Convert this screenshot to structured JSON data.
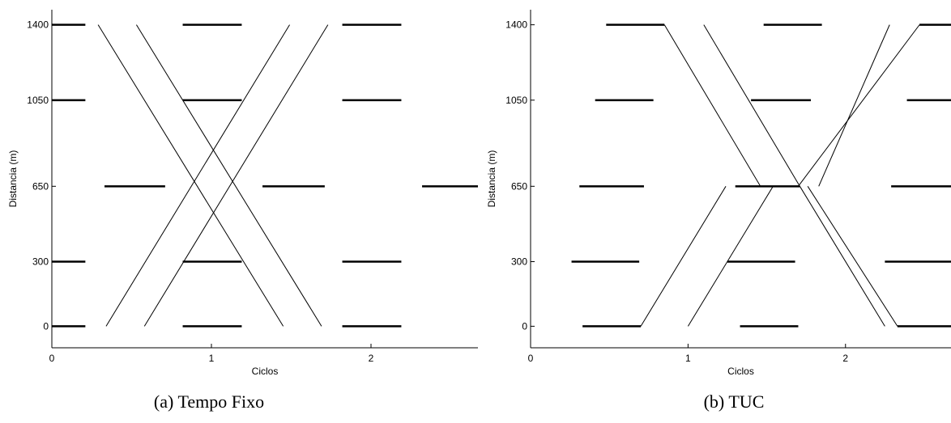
{
  "chart_data": [
    {
      "type": "line",
      "caption": "(a) Tempo Fixo",
      "xlabel": "Ciclos",
      "ylabel": "Distancia (m)",
      "xlim": [
        0,
        2.67
      ],
      "ylim": [
        -100,
        1470
      ],
      "xticks": [
        0,
        1,
        2
      ],
      "yticks": [
        0,
        300,
        650,
        1050,
        1400
      ],
      "green_bands": [
        {
          "y": 0,
          "segments": [
            [
              0,
              0.21
            ],
            [
              0.82,
              1.19
            ],
            [
              1.82,
              2.19
            ]
          ]
        },
        {
          "y": 300,
          "segments": [
            [
              0,
              0.21
            ],
            [
              0.82,
              1.19
            ],
            [
              1.82,
              2.19
            ]
          ]
        },
        {
          "y": 650,
          "segments": [
            [
              0.33,
              0.71
            ],
            [
              1.32,
              1.71
            ],
            [
              2.32,
              2.67
            ]
          ]
        },
        {
          "y": 1050,
          "segments": [
            [
              0,
              0.21
            ],
            [
              0.82,
              1.19
            ],
            [
              1.82,
              2.19
            ]
          ]
        },
        {
          "y": 1400,
          "segments": [
            [
              0,
              0.21
            ],
            [
              0.82,
              1.19
            ],
            [
              1.82,
              2.19
            ]
          ]
        }
      ],
      "trajectories": [
        [
          [
            0.34,
            0
          ],
          [
            1.49,
            1400
          ]
        ],
        [
          [
            0.58,
            0
          ],
          [
            1.73,
            1400
          ]
        ],
        [
          [
            0.29,
            1400
          ],
          [
            1.45,
            0
          ]
        ],
        [
          [
            0.53,
            1400
          ],
          [
            1.69,
            0
          ]
        ]
      ]
    },
    {
      "type": "line",
      "caption": "(b) TUC",
      "xlabel": "Ciclos",
      "ylabel": "Distancia (m)",
      "xlim": [
        0,
        2.67
      ],
      "ylim": [
        -100,
        1470
      ],
      "xticks": [
        0,
        1,
        2
      ],
      "yticks": [
        0,
        300,
        650,
        1050,
        1400
      ],
      "green_bands": [
        {
          "y": 0,
          "segments": [
            [
              0.33,
              0.7
            ],
            [
              1.33,
              1.7
            ],
            [
              2.33,
              2.67
            ]
          ]
        },
        {
          "y": 300,
          "segments": [
            [
              0.26,
              0.69
            ],
            [
              1.25,
              1.68
            ],
            [
              2.25,
              2.67
            ]
          ]
        },
        {
          "y": 650,
          "segments": [
            [
              0.31,
              0.72
            ],
            [
              1.3,
              1.71
            ],
            [
              2.29,
              2.67
            ]
          ]
        },
        {
          "y": 1050,
          "segments": [
            [
              0.41,
              0.78
            ],
            [
              1.4,
              1.78
            ],
            [
              2.39,
              2.67
            ]
          ]
        },
        {
          "y": 1400,
          "segments": [
            [
              0.48,
              0.85
            ],
            [
              1.48,
              1.85
            ],
            [
              2.47,
              2.67
            ]
          ]
        }
      ],
      "trajectories": [
        [
          [
            0.7,
            0
          ],
          [
            1.24,
            650
          ]
        ],
        [
          [
            1.0,
            0
          ],
          [
            1.54,
            650
          ]
        ],
        [
          [
            1.71,
            650
          ],
          [
            2.25,
            0
          ]
        ],
        [
          [
            1.76,
            650
          ],
          [
            2.33,
            0
          ]
        ],
        [
          [
            1.83,
            650
          ],
          [
            2.28,
            1400
          ]
        ],
        [
          [
            1.7,
            650
          ],
          [
            2.47,
            1400
          ]
        ],
        [
          [
            0.85,
            1400
          ],
          [
            1.46,
            650
          ]
        ],
        [
          [
            1.1,
            1400
          ],
          [
            1.71,
            650
          ]
        ]
      ]
    }
  ]
}
